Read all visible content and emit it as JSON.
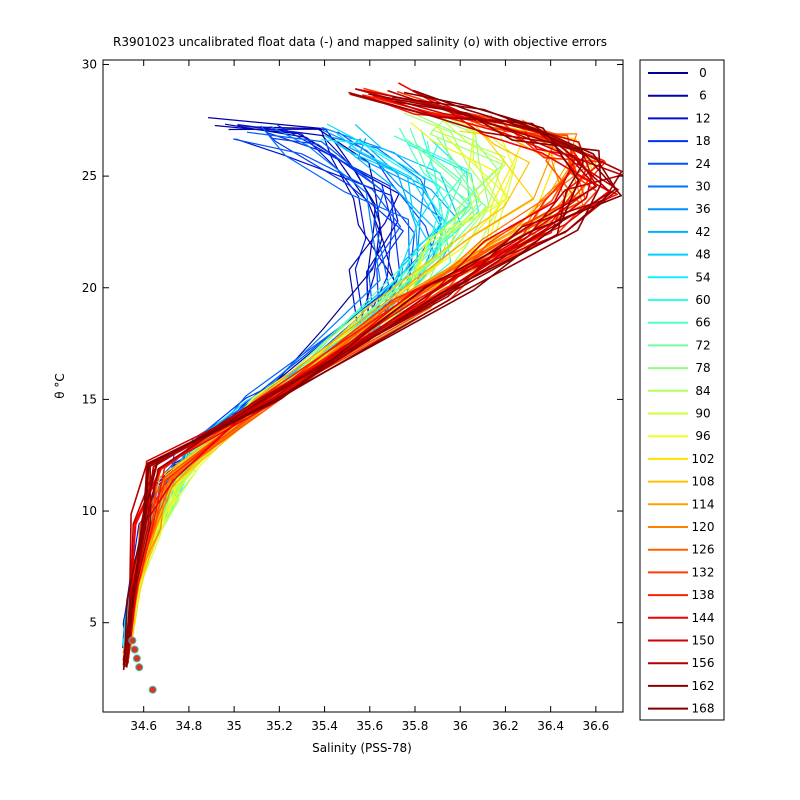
{
  "chart_data": {
    "type": "line",
    "title": "R3901023 uncalibrated float data (-) and mapped salinity (o) with objective errors",
    "xlabel": "Salinity (PSS-78)",
    "ylabel": "θ °C",
    "xlim": [
      34.42,
      36.72
    ],
    "ylim": [
      1.0,
      30.2
    ],
    "xticks": [
      34.6,
      34.8,
      35,
      35.2,
      35.4,
      35.6,
      35.8,
      36,
      36.2,
      36.4,
      36.6
    ],
    "xtick_labels": [
      "34.6",
      "34.8",
      "35",
      "35.2",
      "35.4",
      "35.6",
      "35.8",
      "36",
      "36.2",
      "36.4",
      "36.6"
    ],
    "yticks": [
      5,
      10,
      15,
      20,
      25,
      30
    ],
    "ytick_labels": [
      "5",
      "10",
      "15",
      "20",
      "25",
      "30"
    ],
    "grid": false,
    "legend_position": "outside-right",
    "legend": [
      "0",
      "6",
      "12",
      "18",
      "24",
      "30",
      "36",
      "42",
      "48",
      "54",
      "60",
      "66",
      "72",
      "78",
      "84",
      "90",
      "96",
      "102",
      "108",
      "114",
      "120",
      "126",
      "132",
      "138",
      "144",
      "150",
      "156",
      "162",
      "168"
    ],
    "legend_colors": [
      "#00008f",
      "#0000b0",
      "#0010d0",
      "#0030f0",
      "#0050ff",
      "#0070ff",
      "#0090ff",
      "#00b0ff",
      "#00d0ff",
      "#10f0ff",
      "#30ffe0",
      "#50ffc0",
      "#70ffa0",
      "#90ff80",
      "#b0ff60",
      "#d0ff40",
      "#f0ff20",
      "#ffe000",
      "#ffc000",
      "#ffa000",
      "#ff8000",
      "#ff6000",
      "#ff4000",
      "#ff2000",
      "#f00000",
      "#d00000",
      "#b00000",
      "#900000",
      "#800000"
    ],
    "profile_cycles": [
      0,
      6,
      12,
      18,
      24,
      30,
      36,
      42,
      48,
      54,
      60,
      66,
      72,
      78,
      84,
      90,
      96,
      102,
      108,
      114,
      120,
      126,
      132,
      138,
      144,
      150,
      156,
      162,
      168
    ],
    "series": [
      {
        "x": [
          34.52,
          34.52,
          34.55,
          34.6,
          34.68,
          34.78,
          34.88,
          35.1,
          35.5,
          35.62,
          35.58,
          35.62,
          35.55,
          35.35,
          35.0
        ],
        "y": [
          4.2,
          5.0,
          7.0,
          9.0,
          11.0,
          12.2,
          13.0,
          15.0,
          18.0,
          20.5,
          22.5,
          24.0,
          25.5,
          26.8,
          27.3
        ]
      },
      {
        "x": [
          34.52,
          34.53,
          34.56,
          34.62,
          34.7,
          34.78,
          34.86,
          35.1,
          35.55,
          35.7,
          35.7,
          35.6,
          35.3,
          35.1
        ],
        "y": [
          4.0,
          5.2,
          7.2,
          9.5,
          11.2,
          12.5,
          13.2,
          15.0,
          18.2,
          20.5,
          22.8,
          24.5,
          26.3,
          27.0
        ]
      },
      {
        "x": [
          34.52,
          34.53,
          34.57,
          34.63,
          34.72,
          34.82,
          34.9,
          35.1,
          35.6,
          35.8,
          35.9,
          35.8,
          35.6,
          35.5
        ],
        "y": [
          4.1,
          5.1,
          7.1,
          9.2,
          11.0,
          12.5,
          13.4,
          15.0,
          18.5,
          21.0,
          23.0,
          24.8,
          26.2,
          27.0
        ]
      },
      {
        "x": [
          34.53,
          34.55,
          34.62,
          34.7,
          34.78,
          34.84,
          35.12,
          35.62,
          35.85,
          36.0,
          35.95,
          35.8
        ],
        "y": [
          4.0,
          6.0,
          8.5,
          10.5,
          11.8,
          12.6,
          15.0,
          18.8,
          21.5,
          23.5,
          25.2,
          26.8
        ]
      },
      {
        "x": [
          34.53,
          34.56,
          34.64,
          34.72,
          34.8,
          35.12,
          35.68,
          35.95,
          36.1,
          36.1,
          35.95,
          35.85
        ],
        "y": [
          3.8,
          6.2,
          8.8,
          10.5,
          12.0,
          15.0,
          19.0,
          21.8,
          23.8,
          25.5,
          26.8,
          27.5
        ]
      },
      {
        "x": [
          34.53,
          34.57,
          34.66,
          34.74,
          35.13,
          35.72,
          36.05,
          36.25,
          36.3,
          36.2,
          36.05
        ],
        "y": [
          3.8,
          6.5,
          9.0,
          11.0,
          15.0,
          19.2,
          22.0,
          24.0,
          25.6,
          26.8,
          27.4
        ]
      },
      {
        "x": [
          34.52,
          34.56,
          34.63,
          34.7,
          35.15,
          35.8,
          36.2,
          36.45,
          36.5,
          36.4,
          36.2
        ],
        "y": [
          3.5,
          6.5,
          9.3,
          11.5,
          15.0,
          19.5,
          22.3,
          24.0,
          25.6,
          26.5,
          27.2
        ]
      },
      {
        "x": [
          34.52,
          34.55,
          34.6,
          34.65,
          35.16,
          35.9,
          36.35,
          36.58,
          36.6,
          36.45,
          36.2,
          35.9,
          35.62
        ],
        "y": [
          3.2,
          6.2,
          9.5,
          12.0,
          15.0,
          19.8,
          22.5,
          24.2,
          25.3,
          26.2,
          27.2,
          28.0,
          28.8
        ]
      },
      {
        "x": [
          34.52,
          34.54,
          34.58,
          34.63,
          35.16,
          35.95,
          36.4,
          36.6,
          36.55,
          36.3,
          36.0,
          35.7
        ],
        "y": [
          3.0,
          6.0,
          9.8,
          12.2,
          15.0,
          20.0,
          22.8,
          24.5,
          25.8,
          26.8,
          27.8,
          28.5
        ]
      }
    ],
    "mapped_points": {
      "x": [
        34.55,
        34.56,
        34.57,
        34.58,
        34.64
      ],
      "y": [
        4.2,
        3.8,
        3.4,
        3.0,
        2.0
      ]
    }
  }
}
